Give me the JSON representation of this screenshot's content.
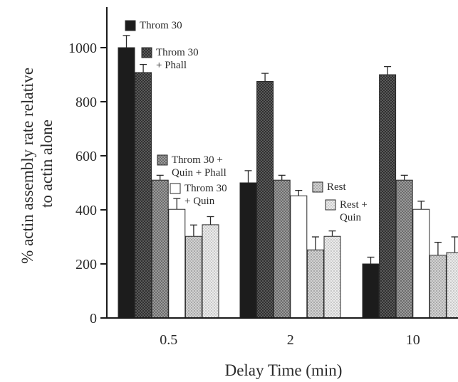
{
  "chart_data": {
    "type": "bar",
    "categories": [
      "0.5",
      "2",
      "10"
    ],
    "xlabel": "Delay Time (min)",
    "ylabel_lines": [
      "% actin assembly rate relative",
      "to actin alone"
    ],
    "ylim": [
      0,
      1150
    ],
    "yticks": [
      0,
      200,
      400,
      600,
      800,
      1000
    ],
    "grid": false,
    "series": [
      {
        "name": "Throm 30",
        "values": [
          1000,
          500,
          200
        ],
        "errors": [
          45,
          45,
          25
        ],
        "color": "#1c1c1c",
        "pattern": "solid"
      },
      {
        "name": "Throm 30 + Phall",
        "values": [
          908,
          875,
          900
        ],
        "errors": [
          30,
          30,
          30
        ],
        "color": "#4a4a4a",
        "pattern": "dark-dots"
      },
      {
        "name": "Throm 30 + Quin + Phall",
        "values": [
          510,
          510,
          510
        ],
        "errors": [
          18,
          18,
          18
        ],
        "color": "#8a8a8a",
        "pattern": "mid-dots"
      },
      {
        "name": "Throm 30 + Quin",
        "values": [
          402,
          452,
          402
        ],
        "errors": [
          40,
          20,
          30
        ],
        "color": "#ffffff",
        "pattern": "white"
      },
      {
        "name": "Rest",
        "values": [
          302,
          252,
          232
        ],
        "errors": [
          42,
          48,
          48
        ],
        "color": "#c4c4c4",
        "pattern": "light-dots"
      },
      {
        "name": "Rest + Quin",
        "values": [
          345,
          302,
          242
        ],
        "errors": [
          30,
          20,
          58
        ],
        "color": "#e2e2e2",
        "pattern": "lighter-dots"
      }
    ],
    "legend": [
      {
        "series": 0,
        "lines": [
          "Throm 30"
        ]
      },
      {
        "series": 1,
        "lines": [
          "Throm 30",
          "+ Phall"
        ]
      },
      {
        "series": 2,
        "lines": [
          "Throm 30 +",
          "Quin + Phall"
        ]
      },
      {
        "series": 3,
        "lines": [
          "Throm 30",
          "+ Quin"
        ]
      },
      {
        "series": 4,
        "lines": [
          "Rest"
        ]
      },
      {
        "series": 5,
        "lines": [
          "Rest +",
          "Quin"
        ]
      }
    ]
  }
}
